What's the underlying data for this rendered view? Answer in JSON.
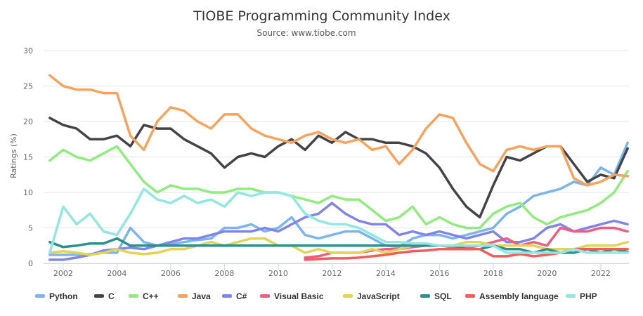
{
  "chart_data": {
    "type": "line",
    "title": "TIOBE Programming Community Index",
    "subtitle": "Source: www.tiobe.com",
    "xlabel": "",
    "ylabel": "Ratings (%)",
    "ylim": [
      0,
      30
    ],
    "yticks": [
      "0",
      "5",
      "10",
      "15",
      "20",
      "25",
      "30"
    ],
    "xlim": [
      2001.27,
      2023.05
    ],
    "xticks": [
      "2002",
      "2004",
      "2006",
      "2008",
      "2010",
      "2012",
      "2014",
      "2016",
      "2018",
      "2020",
      "2022"
    ],
    "grid": true,
    "legend": "bottom",
    "x": [
      2001.5,
      2002,
      2002.5,
      2003,
      2003.5,
      2004,
      2004.5,
      2005,
      2005.5,
      2006,
      2006.5,
      2007,
      2007.5,
      2008,
      2008.5,
      2009,
      2009.5,
      2010,
      2010.5,
      2011,
      2011.5,
      2012,
      2012.5,
      2013,
      2013.5,
      2014,
      2014.5,
      2015,
      2015.5,
      2016,
      2016.5,
      2017,
      2017.5,
      2018,
      2018.5,
      2019,
      2019.5,
      2020,
      2020.5,
      2021,
      2021.5,
      2022,
      2022.5,
      2023
    ],
    "series": [
      {
        "name": "Python",
        "color": "#7cb5ec",
        "values": [
          1.2,
          1.2,
          1.2,
          1.3,
          1.5,
          1.5,
          5,
          3,
          2.5,
          2.7,
          3,
          3.3,
          3.5,
          5,
          5,
          5.5,
          4.5,
          5,
          6.5,
          4,
          3.5,
          4,
          4.5,
          4.5,
          3.5,
          2.5,
          2.3,
          3.5,
          4,
          4,
          3.5,
          4,
          4.5,
          5,
          7,
          8,
          9.5,
          10,
          10.5,
          11.5,
          11,
          13.5,
          12.5,
          17
        ]
      },
      {
        "name": "C",
        "color": "#434348",
        "values": [
          20.5,
          19.5,
          19,
          17.5,
          17.5,
          18,
          16.5,
          19.5,
          19,
          19,
          17.5,
          16.5,
          15.5,
          13.5,
          15,
          15.5,
          15,
          16.5,
          17.5,
          16,
          18,
          17,
          18.5,
          17.5,
          17.5,
          17,
          17,
          16.5,
          15.5,
          13.5,
          10.5,
          8,
          6.5,
          11,
          15,
          14.5,
          15.5,
          16.5,
          16.5,
          14,
          11.5,
          12.5,
          12,
          16.2
        ]
      },
      {
        "name": "C++",
        "color": "#90ed7d",
        "values": [
          14.5,
          16,
          15,
          14.5,
          15.5,
          16.5,
          14,
          11.5,
          10,
          11,
          10.5,
          10.5,
          10,
          10,
          10.5,
          10.5,
          10,
          10,
          9.5,
          9,
          8.5,
          9.5,
          9,
          9,
          7.5,
          6,
          6.5,
          8,
          5.5,
          6.5,
          5.5,
          5,
          5,
          7,
          8,
          8.5,
          6.5,
          5.5,
          6.5,
          7,
          7.5,
          8.5,
          10,
          13
        ]
      },
      {
        "name": "Java",
        "color": "#f7a35c",
        "values": [
          26.5,
          25,
          24.5,
          24.5,
          24,
          24,
          18,
          16,
          20,
          22,
          21.5,
          20,
          19,
          21,
          21,
          19,
          18,
          17.5,
          17,
          18,
          18.5,
          17.5,
          17,
          17.5,
          16,
          16.5,
          14,
          16,
          19,
          21,
          20.5,
          17,
          14,
          13,
          16,
          16.5,
          16,
          16.5,
          16.5,
          12,
          11,
          11.5,
          12.5,
          12.3
        ]
      },
      {
        "name": "C#",
        "color": "#8085e9",
        "values": [
          0.5,
          0.5,
          0.8,
          1.2,
          1.8,
          2,
          2.2,
          2,
          2.5,
          3,
          3.5,
          3.5,
          4,
          4.5,
          4.5,
          4.5,
          5,
          4.5,
          5.5,
          6.5,
          7,
          8.5,
          7,
          6,
          5.5,
          5.5,
          4,
          4.5,
          4,
          4.5,
          4,
          3.5,
          4,
          4.5,
          3,
          3,
          3.5,
          5,
          5.5,
          4.5,
          5,
          5.5,
          6,
          5.5
        ]
      },
      {
        "name": "Visual Basic",
        "color": "#f15c80",
        "values": [
          null,
          null,
          null,
          null,
          null,
          null,
          null,
          null,
          null,
          null,
          null,
          null,
          null,
          null,
          null,
          null,
          null,
          null,
          null,
          0.8,
          1,
          1.5,
          1.5,
          1.5,
          1.8,
          2,
          2,
          2.3,
          2.5,
          2.5,
          2.3,
          2.2,
          2.5,
          3,
          3.5,
          2.5,
          3,
          2.5,
          5,
          4.5,
          4.5,
          5,
          5,
          4.5
        ]
      },
      {
        "name": "JavaScript",
        "color": "#e4d354",
        "values": [
          1.5,
          1.7,
          1.5,
          1.2,
          1.5,
          2,
          1.5,
          1.3,
          1.5,
          2,
          2,
          2.5,
          3,
          2.5,
          3,
          3.5,
          3.5,
          2.5,
          2.5,
          1.5,
          2,
          1.5,
          1.5,
          1.5,
          2,
          1.5,
          2,
          2.5,
          2.5,
          2.5,
          2.5,
          3,
          3,
          2.5,
          2.5,
          2.5,
          2.5,
          2,
          2,
          2,
          2.5,
          2.5,
          2.5,
          3
        ]
      },
      {
        "name": "SQL",
        "color": "#2b908f",
        "values": [
          3,
          2.3,
          2.5,
          2.8,
          2.8,
          3.5,
          2.5,
          2.5,
          2.5,
          2.5,
          2.5,
          2.5,
          2.5,
          2.5,
          2.5,
          2.5,
          2.5,
          2.5,
          2.5,
          2.5,
          2.5,
          2.5,
          2.5,
          2.5,
          2.5,
          2.5,
          2.5,
          2.5,
          2.5,
          2.5,
          2.5,
          2,
          2,
          2.5,
          2,
          2,
          1.5,
          2,
          1.5,
          1.5,
          2,
          1.5,
          2,
          1.6
        ]
      },
      {
        "name": "Assembly language",
        "color": "#f45b5b",
        "values": [
          null,
          null,
          null,
          null,
          null,
          null,
          null,
          null,
          null,
          null,
          null,
          null,
          null,
          null,
          null,
          null,
          null,
          null,
          null,
          0.5,
          0.6,
          0.7,
          0.7,
          0.8,
          1,
          1.2,
          1.5,
          1.7,
          1.8,
          2,
          2,
          2,
          2,
          1,
          1,
          1.3,
          1,
          1.2,
          1.5,
          2,
          2,
          2,
          2,
          2
        ]
      },
      {
        "name": "PHP",
        "color": "#91e8e1",
        "values": [
          1.5,
          8,
          5.5,
          7,
          4.5,
          4,
          7,
          10.5,
          9,
          8.5,
          9.5,
          8.5,
          9,
          8,
          10,
          9.5,
          10,
          10,
          9.5,
          7,
          6,
          5.5,
          5.5,
          5,
          4,
          3,
          3,
          2.8,
          2.8,
          2.5,
          2.5,
          2.5,
          2.5,
          2.5,
          1.5,
          1.5,
          1.5,
          1.5,
          1.5,
          2,
          1.5,
          1.5,
          1.5,
          1.5
        ]
      }
    ]
  }
}
